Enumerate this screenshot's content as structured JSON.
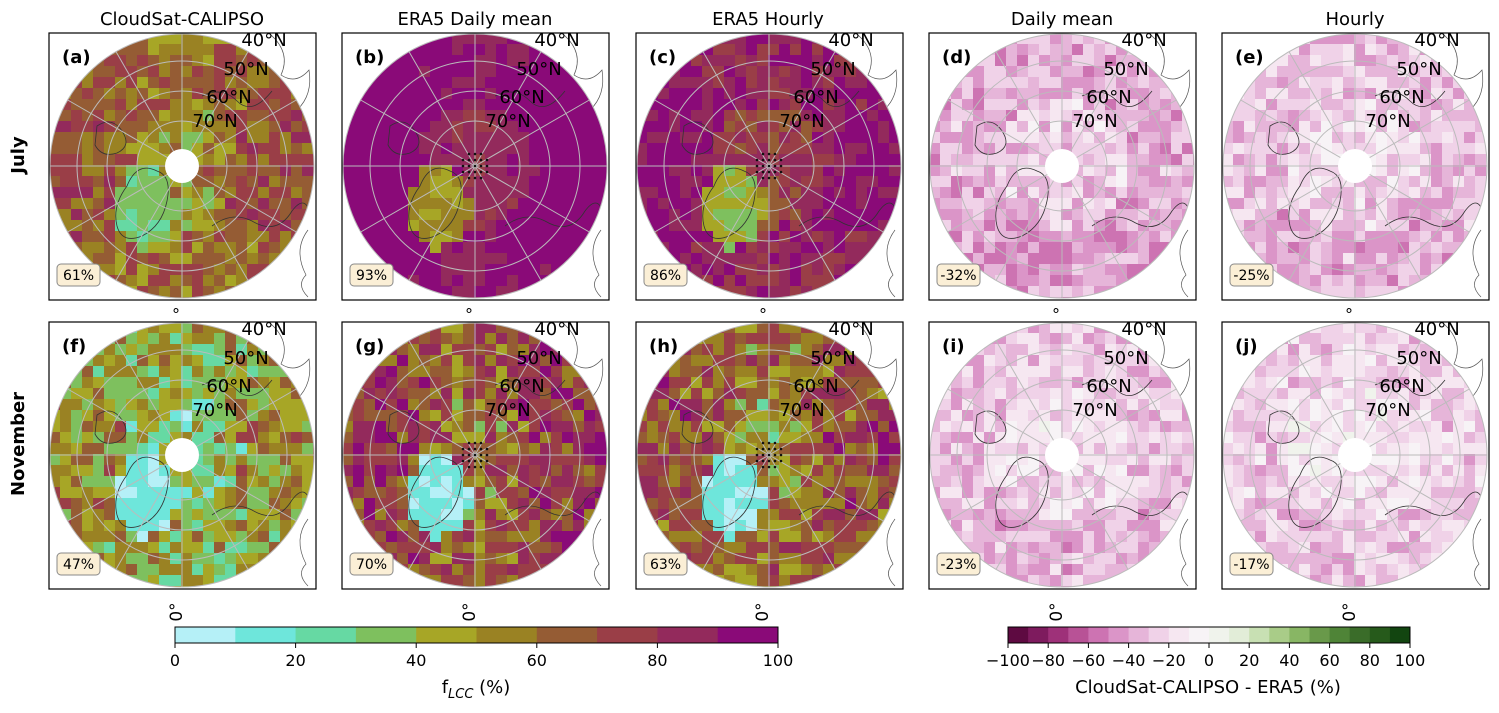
{
  "figure": {
    "column_titles": [
      "CloudSat-CALIPSO",
      "ERA5 Daily mean",
      "ERA5 Hourly",
      "Daily mean",
      "Hourly"
    ],
    "row_labels": [
      "July",
      "November"
    ],
    "panels": [
      {
        "id": "(a)",
        "mean": "61%"
      },
      {
        "id": "(b)",
        "mean": "93%"
      },
      {
        "id": "(c)",
        "mean": "86%"
      },
      {
        "id": "(d)",
        "mean": "-32%"
      },
      {
        "id": "(e)",
        "mean": "-25%"
      },
      {
        "id": "(f)",
        "mean": "47%"
      },
      {
        "id": "(g)",
        "mean": "70%"
      },
      {
        "id": "(h)",
        "mean": "63%"
      },
      {
        "id": "(i)",
        "mean": "-23%"
      },
      {
        "id": "(j)",
        "mean": "-17%"
      }
    ],
    "latitude_labels": [
      "40°N",
      "50°N",
      "60°N",
      "70°N"
    ],
    "longitude_label": "0°",
    "top_marker": "°"
  },
  "colorbars": {
    "flcc": {
      "label_base": "f",
      "label_sub": "LCC",
      "label_tail": " (%)",
      "ticks": [
        "0",
        "20",
        "40",
        "60",
        "80",
        "100"
      ],
      "colors": [
        "#b5f0f7",
        "#6ee6db",
        "#66d9a3",
        "#7ec05e",
        "#a7a626",
        "#9a8223",
        "#955c34",
        "#9a3e47",
        "#932a5c",
        "#8a0a78"
      ]
    },
    "diff": {
      "label": "CloudSat-CALIPSO - ERA5 (%)",
      "ticks": [
        "−100",
        "−80",
        "−60",
        "−40",
        "−20",
        "0",
        "20",
        "40",
        "60",
        "80",
        "100"
      ],
      "colors": [
        "#5e0a41",
        "#7e1b5e",
        "#9e3179",
        "#b85296",
        "#cd73b2",
        "#db95c8",
        "#e6b5d9",
        "#f0d2e8",
        "#f6e7f1",
        "#f7f3f6",
        "#f0f3ec",
        "#e2edd8",
        "#c8e0b3",
        "#a9cc88",
        "#88b664",
        "#69994a",
        "#4f8437",
        "#3a6c29",
        "#265a1b",
        "#124510"
      ]
    }
  }
}
